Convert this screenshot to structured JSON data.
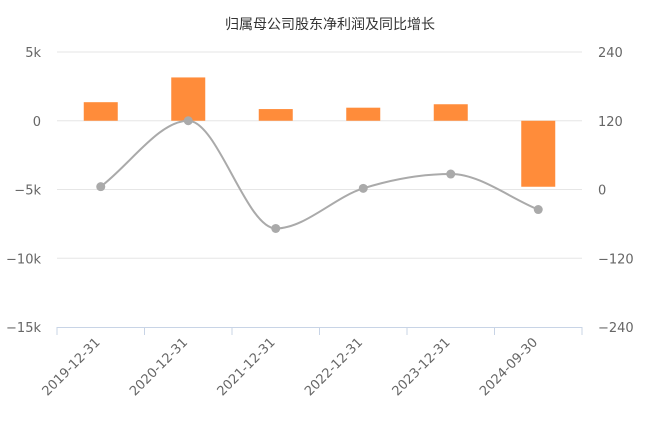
{
  "chart_data": {
    "type": "bar+line",
    "title": "归属母公司股东净利润及同比增长",
    "categories": [
      "2019-12-31",
      "2020-12-31",
      "2021-12-31",
      "2022-12-31",
      "2023-12-31",
      "2024-09-30"
    ],
    "left_axis": {
      "ticks": [
        5000,
        0,
        -5000,
        -10000,
        -15000
      ],
      "tick_labels": [
        "5k",
        "0",
        "−5k",
        "−10k",
        "−15k"
      ],
      "ylim": [
        -15000,
        5000
      ]
    },
    "right_axis": {
      "ticks": [
        240,
        120,
        0,
        -120,
        -240
      ],
      "tick_labels": [
        "240",
        "120",
        "0",
        "−120",
        "−240"
      ],
      "ylim": [
        -240,
        240
      ]
    },
    "series": [
      {
        "type": "bar",
        "axis": "left",
        "color": "#ff8c3a",
        "values": [
          1350,
          3150,
          850,
          950,
          1200,
          -4800
        ]
      },
      {
        "type": "line",
        "axis": "right",
        "color": "#aaaaaa",
        "values": [
          5,
          120,
          -68,
          2,
          27,
          -35
        ]
      }
    ],
    "grid": true,
    "legend": "none"
  }
}
